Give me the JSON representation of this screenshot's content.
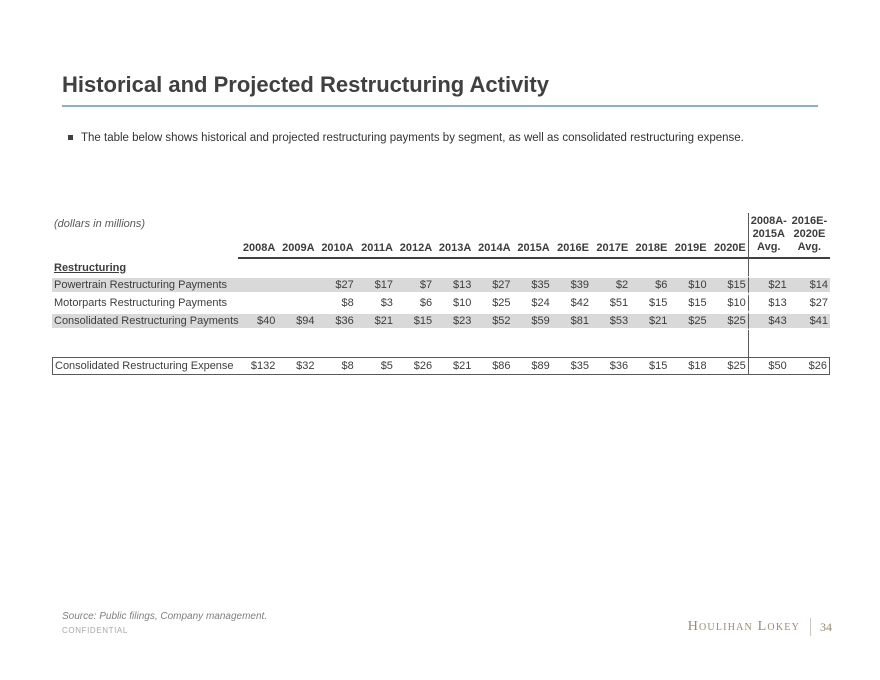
{
  "slide": {
    "title": "Historical and Projected Restructuring Activity",
    "bullet": "The table below shows historical and projected restructuring payments by segment, as well as consolidated restructuring expense.",
    "units_note": "(dollars in millions)"
  },
  "table": {
    "section_label": "Restructuring",
    "columns": [
      "2008A",
      "2009A",
      "2010A",
      "2011A",
      "2012A",
      "2013A",
      "2014A",
      "2015A",
      "2016E",
      "2017E",
      "2018E",
      "2019E",
      "2020E"
    ],
    "avg_columns": [
      {
        "lines": [
          "2008A-",
          "2015A",
          "Avg."
        ]
      },
      {
        "lines": [
          "2016E-",
          "2020E",
          "Avg."
        ]
      }
    ],
    "rows": [
      {
        "label": "Powertrain Restructuring Payments",
        "shaded": true,
        "values": [
          "",
          "",
          "$27",
          "$17",
          "$7",
          "$13",
          "$27",
          "$35",
          "$39",
          "$2",
          "$6",
          "$10",
          "$15"
        ],
        "avg": [
          "$21",
          "$14"
        ]
      },
      {
        "label": "Motorparts Restructuring Payments",
        "shaded": false,
        "values": [
          "",
          "",
          "$8",
          "$3",
          "$6",
          "$10",
          "$25",
          "$24",
          "$42",
          "$51",
          "$15",
          "$15",
          "$10"
        ],
        "avg": [
          "$13",
          "$27"
        ]
      },
      {
        "label": "Consolidated Restructuring Payments",
        "shaded": true,
        "values": [
          "$40",
          "$94",
          "$36",
          "$21",
          "$15",
          "$23",
          "$52",
          "$59",
          "$81",
          "$53",
          "$21",
          "$25",
          "$25"
        ],
        "avg": [
          "$43",
          "$41"
        ]
      }
    ],
    "total_row": {
      "label": "Consolidated Restructuring Expense",
      "values": [
        "$132",
        "$32",
        "$8",
        "$5",
        "$26",
        "$21",
        "$86",
        "$89",
        "$35",
        "$36",
        "$15",
        "$18",
        "$25"
      ],
      "avg": [
        "$50",
        "$26"
      ]
    }
  },
  "footer": {
    "source": "Source: Public filings, Company management.",
    "confidential": "CONFIDENTIAL",
    "logo": "Houlihan Lokey",
    "page_number": "34"
  },
  "colors": {
    "accent_underline": "#8BB0C4",
    "row_shade": "#D9D9D9",
    "header_rule": "#404040",
    "box_border": "#595959",
    "logo_tan": "#9B8A71",
    "text_dark": "#404040"
  }
}
